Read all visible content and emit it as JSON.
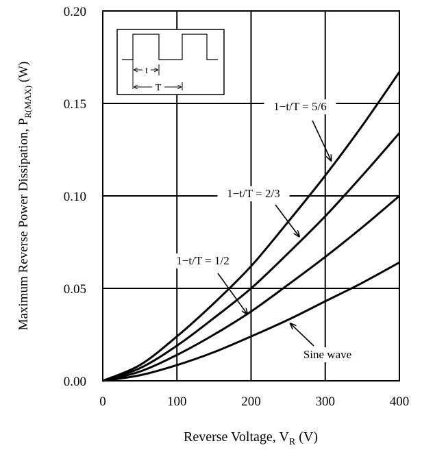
{
  "chart_data": {
    "type": "line",
    "xlabel": "Reverse Voltage, V",
    "xlabel_sub": "R",
    "xlabel_unit": " (V)",
    "ylabel": "Maximum Reverse Power Dissipation, P",
    "ylabel_sub": "R(MAX)",
    "ylabel_unit": " (W)",
    "xlim": [
      0,
      400
    ],
    "ylim": [
      0,
      0.2
    ],
    "x_ticks": [
      0,
      100,
      200,
      300,
      400
    ],
    "x_tick_labels": [
      "0",
      "100",
      "200",
      "300",
      "400"
    ],
    "y_ticks": [
      0,
      0.05,
      0.1,
      0.15,
      0.2
    ],
    "y_tick_labels": [
      "0.00",
      "0.05",
      "0.10",
      "0.15",
      "0.20"
    ],
    "grid": true,
    "x": [
      0,
      50,
      100,
      150,
      200,
      250,
      300,
      350,
      400
    ],
    "series": [
      {
        "name": "1−t/T = 5/6",
        "values": [
          0,
          0.0085,
          0.024,
          0.042,
          0.062,
          0.086,
          0.111,
          0.138,
          0.167
        ]
      },
      {
        "name": "1−t/T = 2/3",
        "values": [
          0,
          0.0068,
          0.019,
          0.034,
          0.05,
          0.069,
          0.089,
          0.111,
          0.134
        ]
      },
      {
        "name": "1−t/T = 1/2",
        "values": [
          0,
          0.005,
          0.014,
          0.025,
          0.0375,
          0.052,
          0.067,
          0.083,
          0.1
        ]
      },
      {
        "name": "Sine wave",
        "values": [
          0,
          0.003,
          0.0085,
          0.0155,
          0.024,
          0.033,
          0.043,
          0.053,
          0.064
        ]
      }
    ],
    "annotations": [
      {
        "label": "1−t/T = 5/6",
        "arrow_to": [
          308,
          0.119
        ]
      },
      {
        "label": "1−t/T = 2/3",
        "arrow_to": [
          265,
          0.078
        ]
      },
      {
        "label": "1−t/T = 1/2",
        "arrow_to": [
          195,
          0.036
        ]
      },
      {
        "label": "Sine wave",
        "arrow_to": [
          253,
          0.031
        ]
      }
    ],
    "inset": {
      "t_label": "t",
      "T_label": "T"
    }
  }
}
